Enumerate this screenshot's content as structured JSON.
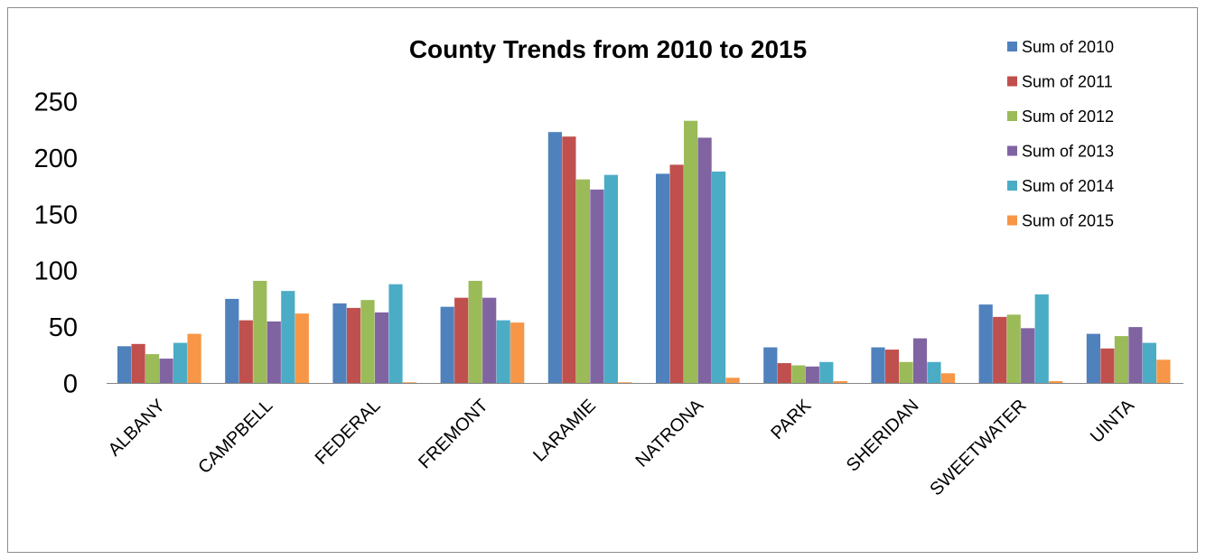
{
  "chart_data": {
    "type": "bar",
    "title": "County Trends from 2010 to 2015",
    "xlabel": "",
    "ylabel": "",
    "ylim": [
      0,
      250
    ],
    "yticks": [
      0,
      50,
      100,
      150,
      200,
      250
    ],
    "grid": false,
    "legend_position": "top-right",
    "categories": [
      "ALBANY",
      "CAMPBELL",
      "FEDERAL",
      "FREMONT",
      "LARAMIE",
      "NATRONA",
      "PARK",
      "SHERIDAN",
      "SWEETWATER",
      "UINTA"
    ],
    "series": [
      {
        "name": "Sum of 2010",
        "color": "#4f81bd",
        "values": [
          33,
          75,
          71,
          68,
          223,
          186,
          32,
          32,
          70,
          44
        ]
      },
      {
        "name": "Sum of 2011",
        "color": "#c0504d",
        "values": [
          35,
          56,
          67,
          76,
          219,
          194,
          18,
          30,
          59,
          31
        ]
      },
      {
        "name": "Sum of 2012",
        "color": "#9bbb59",
        "values": [
          26,
          91,
          74,
          91,
          181,
          233,
          16,
          19,
          61,
          42
        ]
      },
      {
        "name": "Sum of 2013",
        "color": "#8064a2",
        "values": [
          22,
          55,
          63,
          76,
          172,
          218,
          15,
          40,
          49,
          50
        ]
      },
      {
        "name": "Sum of 2014",
        "color": "#4bacc6",
        "values": [
          36,
          82,
          88,
          56,
          185,
          188,
          19,
          19,
          79,
          36
        ]
      },
      {
        "name": "Sum of 2015",
        "color": "#f79646",
        "values": [
          44,
          62,
          1,
          54,
          1,
          5,
          2,
          9,
          2,
          21
        ]
      }
    ]
  }
}
